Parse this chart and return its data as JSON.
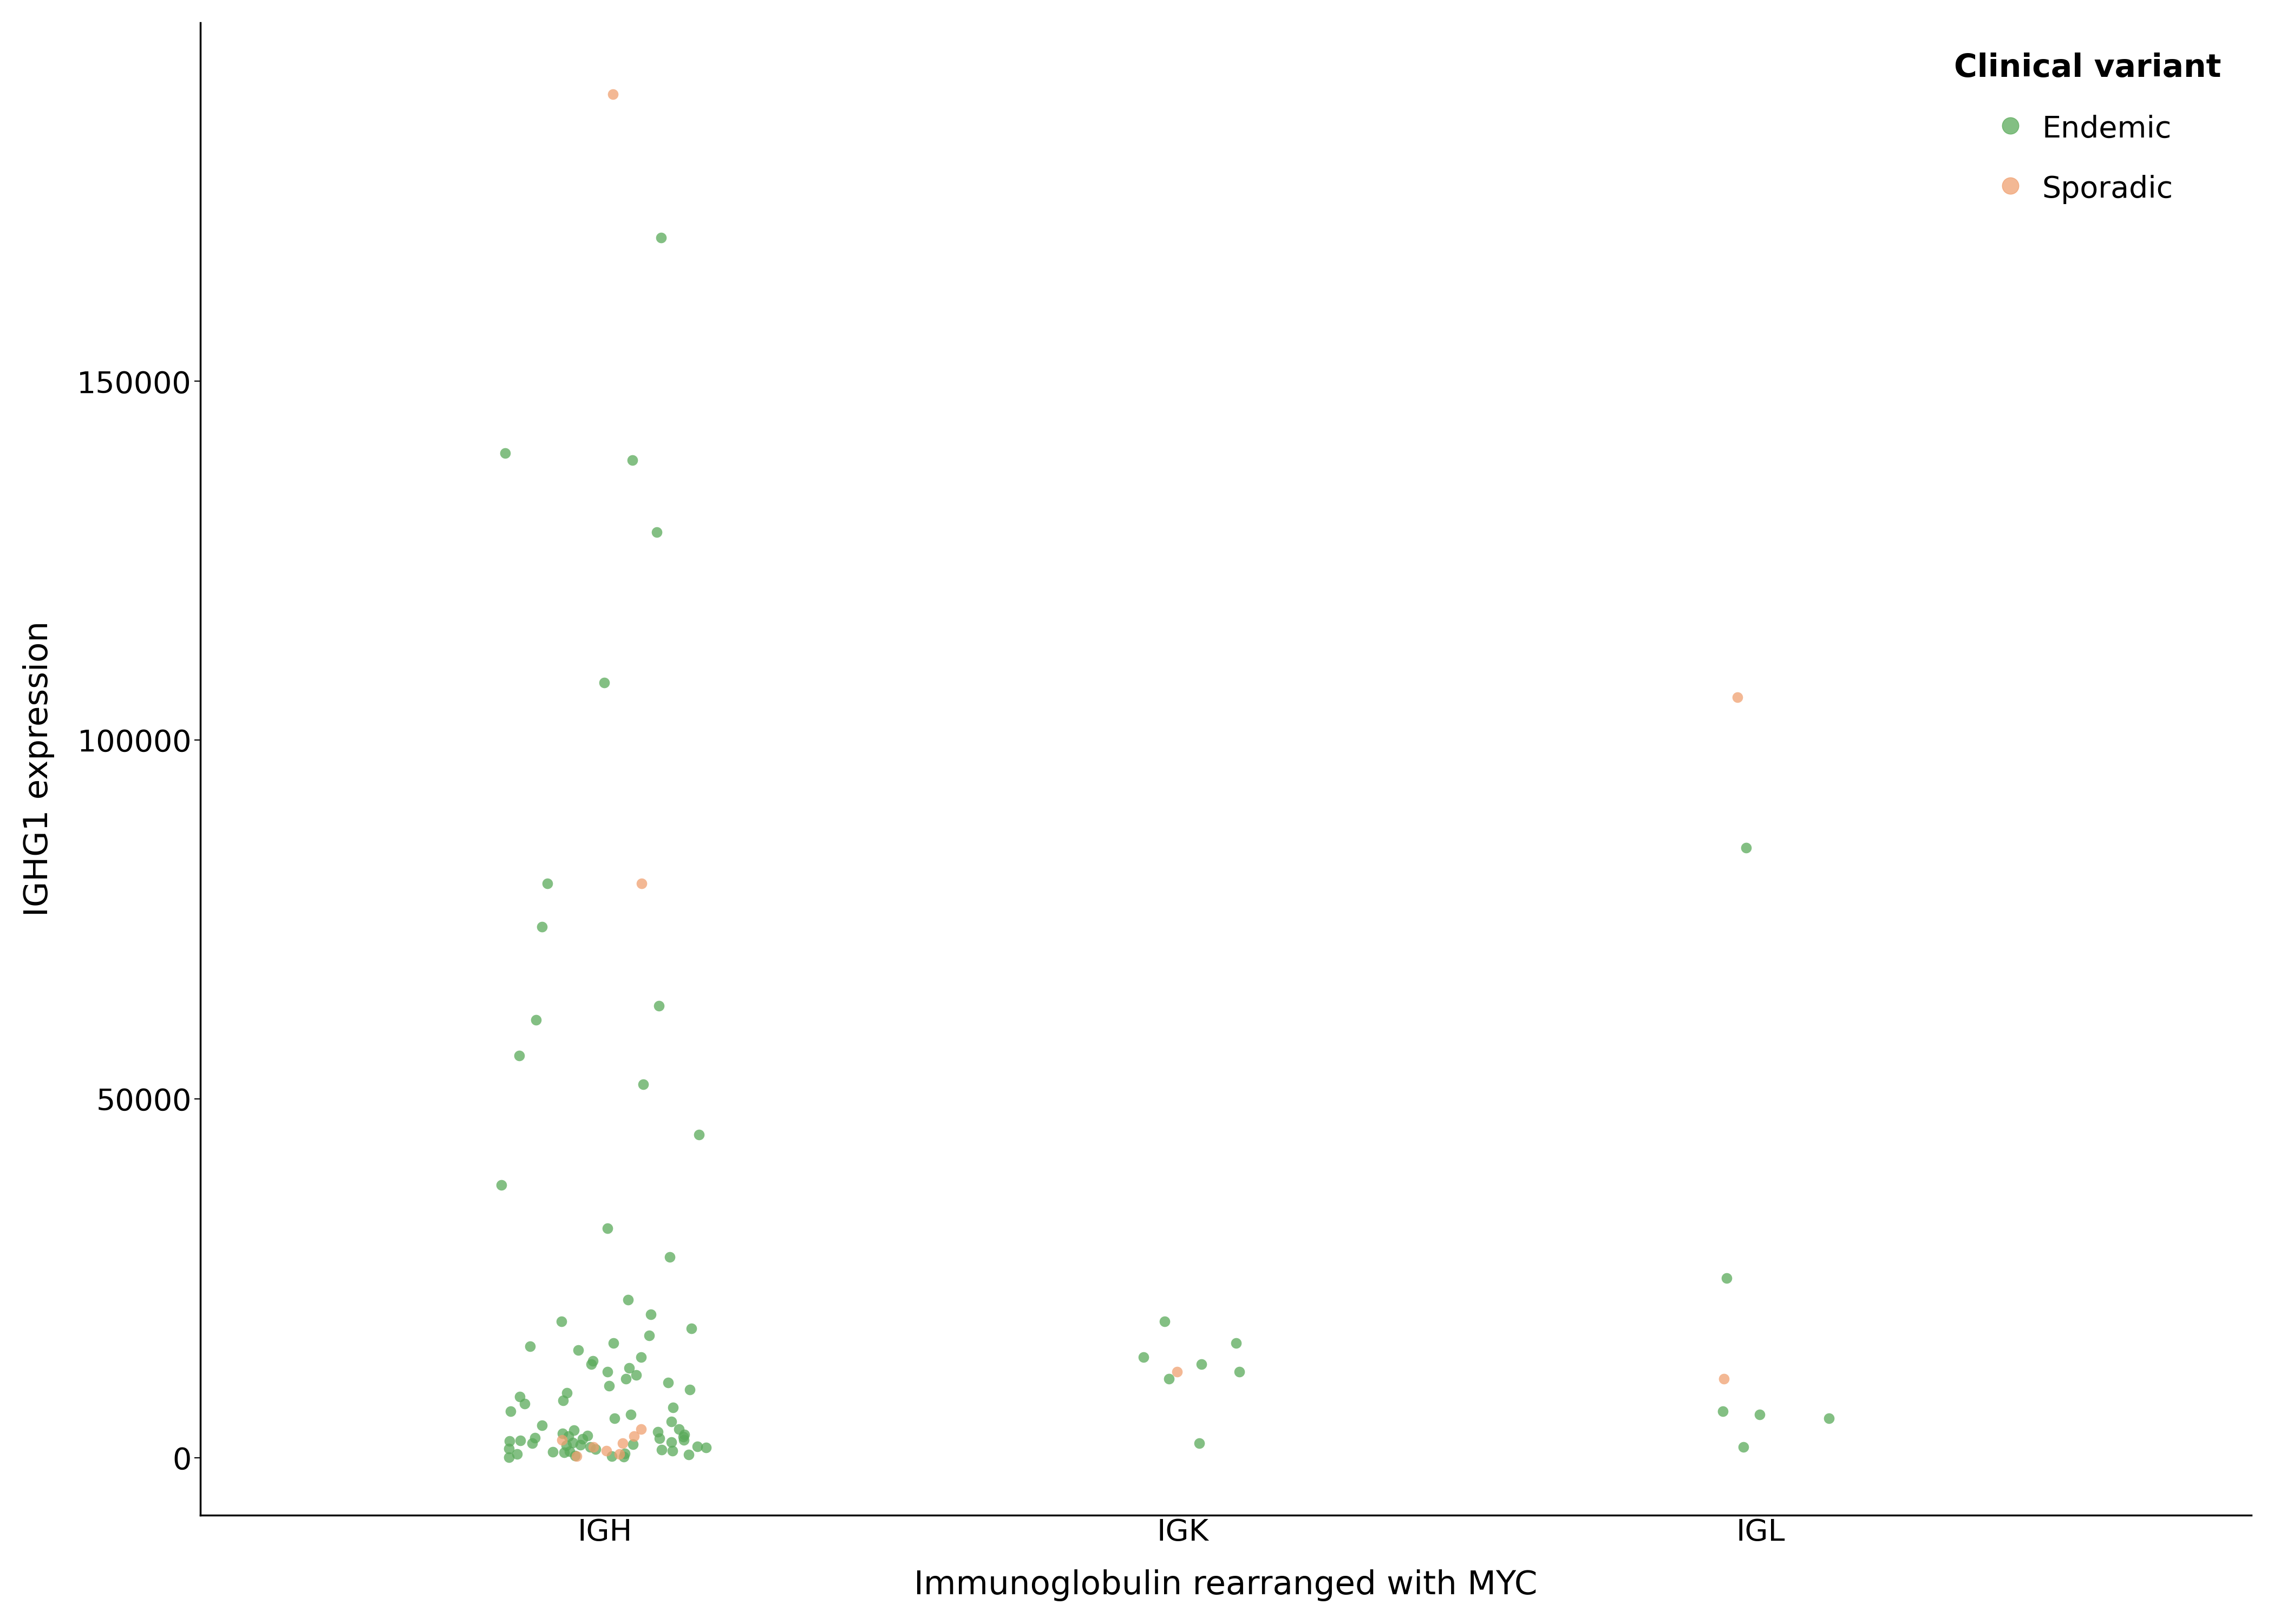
{
  "title": "",
  "xlabel": "Immunoglobulin rearranged with MYC",
  "ylabel": "IGHG1 expression",
  "legend_title": "Clinical variant",
  "categories": [
    "IGH",
    "IGK",
    "IGL"
  ],
  "endemic_color": "#5aaa5a",
  "sporadic_color": "#f0a070",
  "background_color": "#ffffff",
  "ylim": [
    -8000,
    200000
  ],
  "yticks": [
    0,
    50000,
    100000,
    150000
  ],
  "endemic_IGH": [
    170000,
    140000,
    139000,
    129000,
    108000,
    80000,
    74000,
    63000,
    61000,
    56000,
    52000,
    45000,
    38000,
    32000,
    28000,
    22000,
    20000,
    19000,
    18000,
    17000,
    16000,
    15500,
    15000,
    14000,
    13500,
    13000,
    12500,
    12000,
    11500,
    11000,
    10500,
    10000,
    9500,
    9000,
    8500,
    8000,
    7500,
    7000,
    6500,
    6000,
    5500,
    5000,
    4500,
    4000,
    3800,
    3600,
    3400,
    3200,
    3000,
    2800,
    2600,
    2400,
    2200,
    2000,
    1800,
    1600,
    1400,
    1200,
    1000,
    800,
    600,
    400,
    200,
    100,
    50,
    300,
    500,
    700,
    900,
    1100,
    1300,
    1500,
    1700,
    1900,
    2100,
    2300,
    2500,
    2700,
    2900,
    3100
  ],
  "sporadic_IGH": [
    190000,
    80000,
    4000,
    3000,
    2500,
    2000,
    1500,
    1000,
    500,
    200
  ],
  "endemic_IGK": [
    2000,
    11000,
    13000,
    14000,
    16000,
    19000,
    12000
  ],
  "sporadic_IGK": [
    12000
  ],
  "endemic_IGL": [
    6000,
    6500,
    25000,
    85000,
    1500,
    5500
  ],
  "sporadic_IGL": [
    106000,
    11000
  ],
  "jitter_seed": 42,
  "point_size": 200,
  "alpha": 0.75,
  "title_fontsize": 40,
  "axis_label_fontsize": 44,
  "tick_fontsize": 40,
  "legend_title_fontsize": 42,
  "legend_fontsize": 40
}
